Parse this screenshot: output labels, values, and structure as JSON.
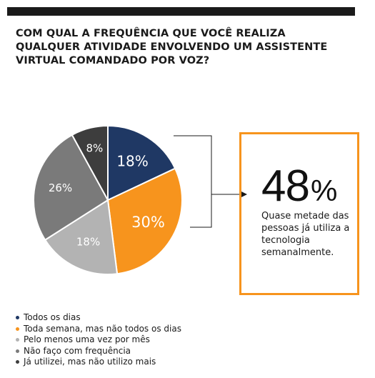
{
  "title": "COM QUAL A FREQUÊNCIA QUE VOCÊ REALIZA\nQUALQUER ATIVIDADE ENVOLVENDO UM ASSISTENTE\nVIRTUAL COMANDADO POR VOZ?",
  "callout": {
    "number": "48",
    "percent_sign": "%",
    "text": "Quase metade das pessoas já utiliza a tecnologia semanalmente."
  },
  "chart_data": {
    "type": "pie",
    "title": "COM QUAL A FREQUÊNCIA QUE VOCÊ REALIZA QUALQUER ATIVIDADE ENVOLVENDO UM ASSISTENTE VIRTUAL COMANDADO POR VOZ?",
    "categories": [
      "Todos os dias",
      "Toda semana, mas não todos os dias",
      "Pelo menos uma vez por mês",
      "Não faço com frequência",
      "Já utilizei, mas não utilizo mais"
    ],
    "values": [
      18,
      30,
      18,
      26,
      8
    ],
    "labels": [
      "18%",
      "30%",
      "18%",
      "26%",
      "8%"
    ],
    "colors": [
      "#1f3864",
      "#f7941d",
      "#b3b3b3",
      "#7a7a7a",
      "#3d3d3d"
    ],
    "label_colors": [
      "#ffffff",
      "#ffffff",
      "#ffffff",
      "#ffffff",
      "#ffffff"
    ],
    "legend_position": "bottom-left"
  }
}
